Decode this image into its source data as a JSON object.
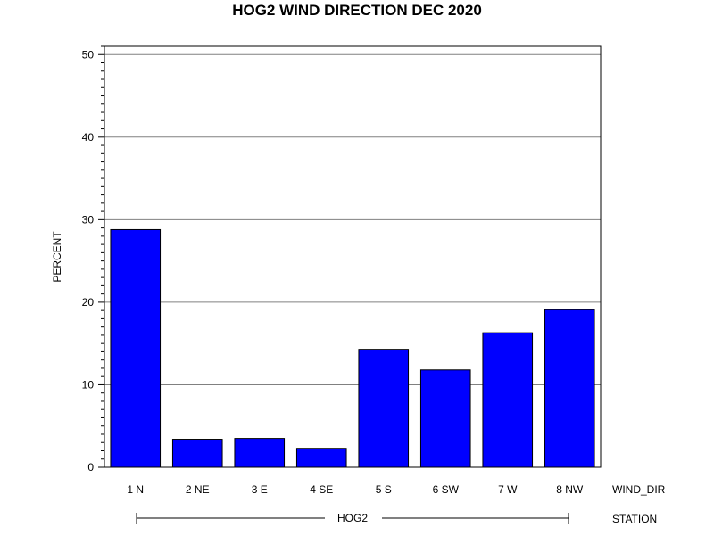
{
  "chart_data": {
    "type": "bar",
    "title": "HOG2 WIND DIRECTION DEC 2020",
    "ylabel": "PERCENT",
    "xlabel": "WIND_DIR",
    "group_axis_label": "STATION",
    "group_label": "HOG2",
    "categories": [
      "1 N",
      "2 NE",
      "3 E",
      "4 SE",
      "5 S",
      "6 SW",
      "7 W",
      "8 NW"
    ],
    "values": [
      28.8,
      3.4,
      3.5,
      2.3,
      14.3,
      11.8,
      16.3,
      19.1
    ],
    "ylim": [
      0,
      51
    ],
    "yticks": [
      0,
      10,
      20,
      30,
      40,
      50
    ],
    "grid": true,
    "bar_color": "#0000ff"
  }
}
